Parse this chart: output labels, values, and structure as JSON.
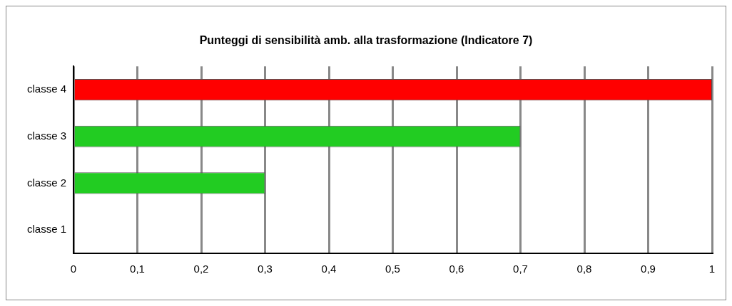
{
  "chart_data": {
    "type": "bar",
    "orientation": "horizontal",
    "title": "Punteggi di sensibilità amb. alla trasformazione (Indicatore 7)",
    "categories": [
      "classe 4",
      "classe 3",
      "classe 2",
      "classe 1"
    ],
    "values": [
      1,
      0.7,
      0.3,
      0
    ],
    "colors": [
      "#ff0000",
      "#22cc22",
      "#22cc22",
      "#22cc22"
    ],
    "xlim": [
      0,
      1
    ],
    "xticks": [
      0,
      {
        "value": 0.1,
        "label": "0,1"
      },
      {
        "value": 0.2,
        "label": "0,2"
      },
      {
        "value": 0.3,
        "label": "0,3"
      },
      {
        "value": 0.4,
        "label": "0,4"
      },
      {
        "value": 0.5,
        "label": "0,5"
      },
      {
        "value": 0.6,
        "label": "0,6"
      },
      {
        "value": 0.7,
        "label": "0,7"
      },
      {
        "value": 0.8,
        "label": "0,8"
      },
      {
        "value": 0.9,
        "label": "0,9"
      },
      1
    ],
    "grid": "x",
    "legend": false
  }
}
